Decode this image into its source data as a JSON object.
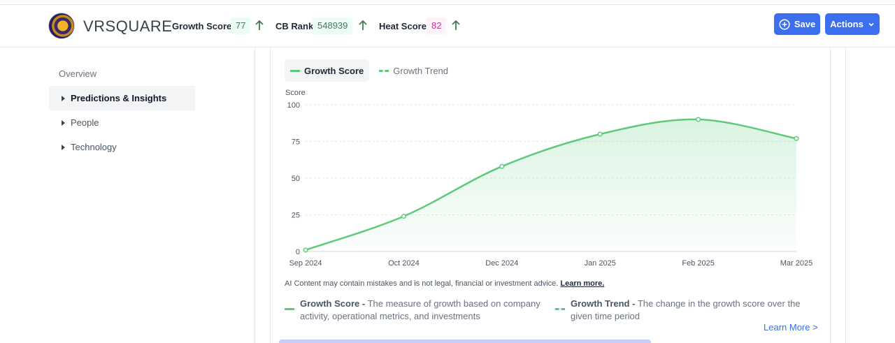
{
  "header": {
    "brand": "VRSQUARE",
    "metrics": [
      {
        "label": "Growth Score",
        "value": "77"
      },
      {
        "label": "CB Rank",
        "value": "548939"
      },
      {
        "label": "Heat Score",
        "value": "82"
      }
    ],
    "save_label": "Save",
    "actions_label": "Actions"
  },
  "sidebar": {
    "overview": "Overview",
    "items": [
      {
        "label": "Predictions & Insights"
      },
      {
        "label": "People"
      },
      {
        "label": "Technology"
      }
    ]
  },
  "legend": {
    "primary": "Growth Score",
    "secondary": "Growth Trend"
  },
  "chart_data": {
    "type": "area",
    "ylabel": "Score",
    "ylim": [
      0,
      100
    ],
    "yticks": [
      0,
      25,
      50,
      75,
      100
    ],
    "categories": [
      "Sep 2024",
      "Oct 2024",
      "Dec 2024",
      "Jan 2025",
      "Feb 2025",
      "Mar 2025"
    ],
    "series": [
      {
        "name": "Growth Score",
        "values": [
          1,
          24,
          58,
          80,
          90,
          77
        ],
        "color": "#5cc97b"
      }
    ],
    "grid": true
  },
  "disclaimer": {
    "text": "AI Content may contain mistakes and is not legal, financial or investment advice.",
    "link": "Learn more."
  },
  "definitions": [
    {
      "term": "Growth Score -",
      "desc": "The measure of growth based on company activity, operational metrics, and investments"
    },
    {
      "term": "Growth Trend -",
      "desc": "The change in the growth score over the given time period"
    }
  ],
  "learn_more": "Learn More >"
}
